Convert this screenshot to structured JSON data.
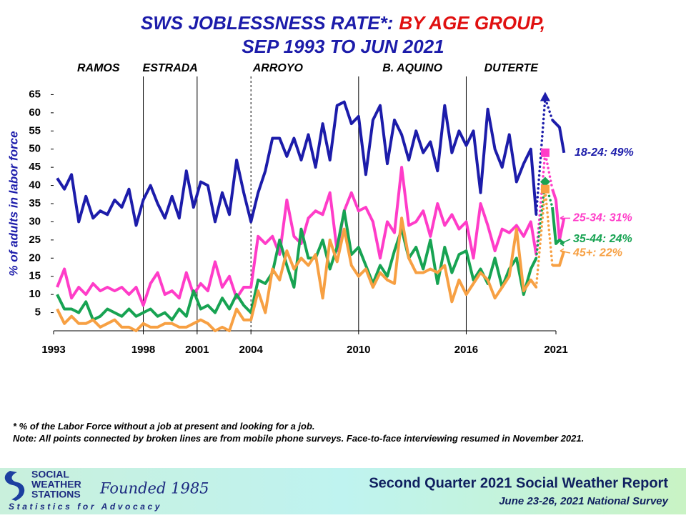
{
  "chart_data": {
    "type": "line",
    "title": "SWS JOBLESSNESS RATE*:",
    "title_highlight": "BY AGE GROUP,",
    "subtitle": "SEP 1993 TO JUN 2021",
    "y_label": "% of adults in labor force",
    "presidents": [
      "RAMOS",
      "ESTRADA",
      "ARROYO",
      "B. AQUINO",
      "DUTERTE"
    ],
    "vlines": [
      {
        "value": 1998,
        "dashed": false
      },
      {
        "value": 2001,
        "dashed": false
      },
      {
        "value": 2004,
        "dashed": true
      },
      {
        "value": 2010,
        "dashed": false
      },
      {
        "value": 2016,
        "dashed": false
      }
    ],
    "xlim": [
      1993,
      2021
    ],
    "xticks": [
      1993,
      1998,
      2001,
      2004,
      2010,
      2016,
      2021
    ],
    "ylim": [
      0,
      70
    ],
    "yticks": [
      5,
      10,
      15,
      20,
      25,
      30,
      35,
      40,
      45,
      50,
      55,
      60,
      65
    ],
    "dotted_x": [
      2019.9,
      2020.8
    ],
    "x": [
      1993.2,
      1993.6,
      1994.0,
      1994.4,
      1994.8,
      1995.2,
      1995.6,
      1996.0,
      1996.4,
      1996.8,
      1997.2,
      1997.6,
      1998.0,
      1998.4,
      1998.8,
      1999.2,
      1999.6,
      2000.0,
      2000.4,
      2000.8,
      2001.2,
      2001.6,
      2002.0,
      2002.4,
      2002.8,
      2003.2,
      2003.6,
      2004.0,
      2004.4,
      2004.8,
      2005.2,
      2005.6,
      2006.0,
      2006.4,
      2006.8,
      2007.2,
      2007.6,
      2008.0,
      2008.4,
      2008.8,
      2009.2,
      2009.6,
      2010.0,
      2010.4,
      2010.8,
      2011.2,
      2011.6,
      2012.0,
      2012.4,
      2012.8,
      2013.2,
      2013.6,
      2014.0,
      2014.4,
      2014.8,
      2015.2,
      2015.6,
      2016.0,
      2016.4,
      2016.8,
      2017.2,
      2017.6,
      2018.0,
      2018.4,
      2018.8,
      2019.2,
      2019.6,
      2019.9,
      2020.4,
      2020.8,
      2021.0,
      2021.2,
      2021.45
    ],
    "series": [
      {
        "name": "18-24: 49%",
        "color": "#1c1caa",
        "marker": "triangle",
        "values": [
          42,
          39,
          43,
          30,
          37,
          31,
          33,
          32,
          36,
          34,
          39,
          29,
          36,
          40,
          35,
          31,
          37,
          31,
          44,
          34,
          41,
          40,
          30,
          38,
          32,
          47,
          38,
          30,
          38,
          44,
          53,
          53,
          48,
          53,
          47,
          54,
          45,
          57,
          47,
          62,
          63,
          57,
          59,
          43,
          58,
          62,
          46,
          58,
          54,
          47,
          55,
          49,
          52,
          44,
          62,
          49,
          55,
          51,
          55,
          38,
          61,
          50,
          45,
          54,
          41,
          46,
          50,
          32,
          64,
          58,
          57,
          56,
          49
        ]
      },
      {
        "name": "25-34: 31%",
        "color": "#ff3cc8",
        "marker": "square",
        "values": [
          12,
          17,
          9,
          12,
          10,
          13,
          11,
          12,
          11,
          12,
          10,
          12,
          7,
          13,
          16,
          10,
          11,
          9,
          16,
          10,
          13,
          11,
          19,
          12,
          15,
          9,
          12,
          12,
          26,
          24,
          26,
          21,
          36,
          26,
          24,
          31,
          33,
          32,
          38,
          22,
          33,
          38,
          33,
          34,
          30,
          20,
          30,
          27,
          45,
          29,
          30,
          33,
          26,
          35,
          29,
          32,
          28,
          30,
          20,
          35,
          29,
          22,
          28,
          27,
          29,
          26,
          30,
          21,
          49,
          39,
          36,
          25,
          31
        ]
      },
      {
        "name": "35-44: 24%",
        "color": "#17a352",
        "marker": "diamond",
        "values": [
          10,
          6,
          6,
          5,
          8,
          3,
          4,
          6,
          5,
          4,
          6,
          4,
          5,
          6,
          4,
          5,
          3,
          6,
          4,
          11,
          6,
          7,
          5,
          9,
          6,
          10,
          7,
          5,
          14,
          13,
          16,
          25,
          18,
          12,
          28,
          20,
          20,
          25,
          17,
          23,
          33,
          21,
          23,
          18,
          13,
          18,
          15,
          22,
          28,
          20,
          23,
          17,
          25,
          13,
          23,
          16,
          21,
          22,
          14,
          17,
          13,
          20,
          12,
          17,
          20,
          10,
          17,
          20,
          41,
          34,
          24,
          25,
          24
        ]
      },
      {
        "name": "45+: 22%",
        "color": "#f7a043",
        "marker": "square",
        "values": [
          6,
          2,
          4,
          2,
          2,
          3,
          1,
          2,
          3,
          1,
          1,
          0,
          2,
          1,
          1,
          2,
          2,
          1,
          1,
          2,
          3,
          2,
          0,
          1,
          0,
          6,
          3,
          3,
          11,
          5,
          17,
          14,
          22,
          17,
          20,
          18,
          21,
          9,
          25,
          19,
          28,
          18,
          15,
          17,
          12,
          16,
          14,
          13,
          31,
          20,
          16,
          16,
          17,
          16,
          18,
          8,
          14,
          10,
          13,
          16,
          14,
          9,
          12,
          15,
          28,
          11,
          14,
          12,
          39,
          18,
          18,
          18,
          22
        ]
      }
    ]
  },
  "notes": {
    "line1": "* % of the Labor Force without  a job at present  and looking  for a job.",
    "line2": "Note: All points connected by broken lines are from mobile phone surveys. Face-to-face interviewing resumed in November 2021."
  },
  "footer": {
    "logo_line1": "SOCIAL",
    "logo_line2": "WEATHER",
    "logo_line3": "STATIONS",
    "founded": "Founded 1985",
    "tagline": "Statistics for Advocacy",
    "report": "Second Quarter 2021 Social Weather Report",
    "survey": "June 23-26, 2021 National Survey"
  }
}
